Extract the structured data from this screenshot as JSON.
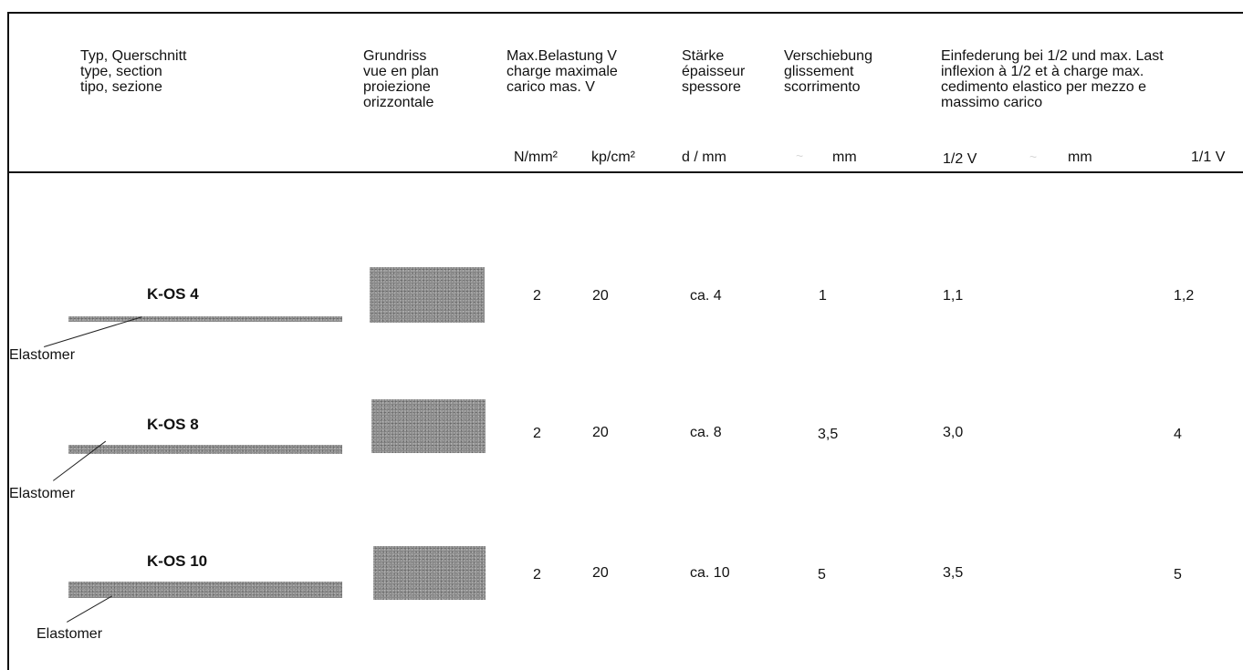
{
  "header": {
    "col1": "Typ, Querschnitt\ntype, section\ntipo, sezione",
    "col2": "Grundriss\nvue en plan\nproiezione\norizzontale",
    "col3": "Max.Belastung V\ncharge maximale\ncarico mas.  V",
    "col4": "Stärke\népaisseur\nspessore",
    "col5": "Verschiebung\nglissement\nscorrimento",
    "col6": "Einfederung bei 1/2 und max. Last\ninflexion à 1/2 et à charge max.\ncedimento elastico per mezzo e\nmassimo carico"
  },
  "units": {
    "load_n": "N/mm²",
    "load_kp": "kp/cm²",
    "thickness": "d / mm",
    "shift_tilde": "~",
    "shift": "mm",
    "half": "1/2 V",
    "deflection_tilde": "~",
    "deflection": "mm",
    "full": "1/1 V"
  },
  "rows": [
    {
      "name": "K-OS 4",
      "material": "Elastomer",
      "load_n": "2",
      "load_kp": "20",
      "thickness": "ca. 4",
      "shift": "1",
      "half": "1,1",
      "full": "1,2"
    },
    {
      "name": "K-OS 8",
      "material": "Elastomer",
      "load_n": "2",
      "load_kp": "20",
      "thickness": "ca. 8",
      "shift": "3,5",
      "half": "3,0",
      "full": "4"
    },
    {
      "name": "K-OS 10",
      "material": "Elastomer",
      "load_n": "2",
      "load_kp": "20",
      "thickness": "ca. 10",
      "shift": "5",
      "half": "3,5",
      "full": "5"
    }
  ]
}
